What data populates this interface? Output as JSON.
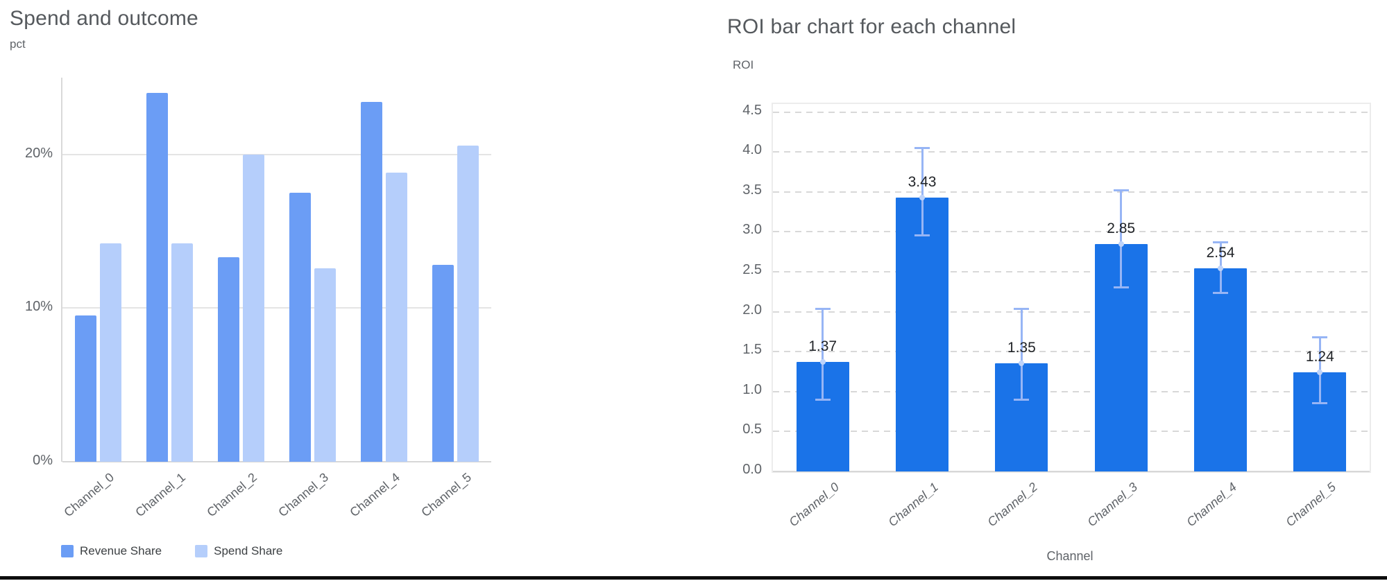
{
  "charts": {
    "left": {
      "title": "Spend and outcome",
      "y_unit": "pct"
    },
    "right": {
      "title": "ROI bar chart for each channel",
      "y_label": "ROI",
      "x_label": "Channel"
    }
  },
  "legend": {
    "items": [
      {
        "label": "Revenue Share",
        "color": "#6b9df5"
      },
      {
        "label": "Spend Share",
        "color": "#b5cefb"
      }
    ]
  },
  "chart_data": [
    {
      "type": "bar",
      "title": "Spend and outcome",
      "ylabel": "pct",
      "xlabel": "",
      "categories": [
        "Channel_0",
        "Channel_1",
        "Channel_2",
        "Channel_3",
        "Channel_4",
        "Channel_5"
      ],
      "series": [
        {
          "name": "Revenue Share",
          "color": "#6b9df5",
          "values": [
            9.5,
            24.0,
            13.3,
            17.5,
            23.4,
            12.8
          ]
        },
        {
          "name": "Spend Share",
          "color": "#b5cefb",
          "values": [
            14.2,
            14.2,
            20.0,
            12.6,
            18.8,
            20.6
          ]
        }
      ],
      "y_ticks": [
        {
          "value": 0,
          "label": "0%"
        },
        {
          "value": 10,
          "label": "10%"
        },
        {
          "value": 20,
          "label": "20%"
        }
      ],
      "ylim": [
        0,
        25
      ],
      "grid": "solid-horizontal",
      "legend_position": "bottom-left"
    },
    {
      "type": "bar",
      "title": "ROI bar chart for each channel",
      "ylabel": "ROI",
      "xlabel": "Channel",
      "categories": [
        "Channel_0",
        "Channel_1",
        "Channel_2",
        "Channel_3",
        "Channel_4",
        "Channel_5"
      ],
      "values": [
        1.37,
        3.43,
        1.35,
        2.85,
        2.54,
        1.24
      ],
      "data_labels": [
        "1.37",
        "3.43",
        "1.35",
        "2.85",
        "2.54",
        "1.24"
      ],
      "error_low": [
        0.89,
        2.95,
        0.89,
        2.3,
        2.23,
        0.85
      ],
      "error_high": [
        2.04,
        4.05,
        2.04,
        3.52,
        2.87,
        1.68
      ],
      "bar_color": "#1a73e8",
      "error_color": "#97b5f5",
      "error_marker_color": "#bdd3fa",
      "y_ticks": [
        {
          "value": 0.0,
          "label": "0.0"
        },
        {
          "value": 0.5,
          "label": "0.5"
        },
        {
          "value": 1.0,
          "label": "1.0"
        },
        {
          "value": 1.5,
          "label": "1.5"
        },
        {
          "value": 2.0,
          "label": "2.0"
        },
        {
          "value": 2.5,
          "label": "2.5"
        },
        {
          "value": 3.0,
          "label": "3.0"
        },
        {
          "value": 3.5,
          "label": "3.5"
        },
        {
          "value": 4.0,
          "label": "4.0"
        },
        {
          "value": 4.5,
          "label": "4.5"
        }
      ],
      "ylim": [
        0,
        4.6
      ],
      "grid": "dashed-horizontal",
      "legend_position": "none",
      "x_tick_style": "italic"
    }
  ]
}
